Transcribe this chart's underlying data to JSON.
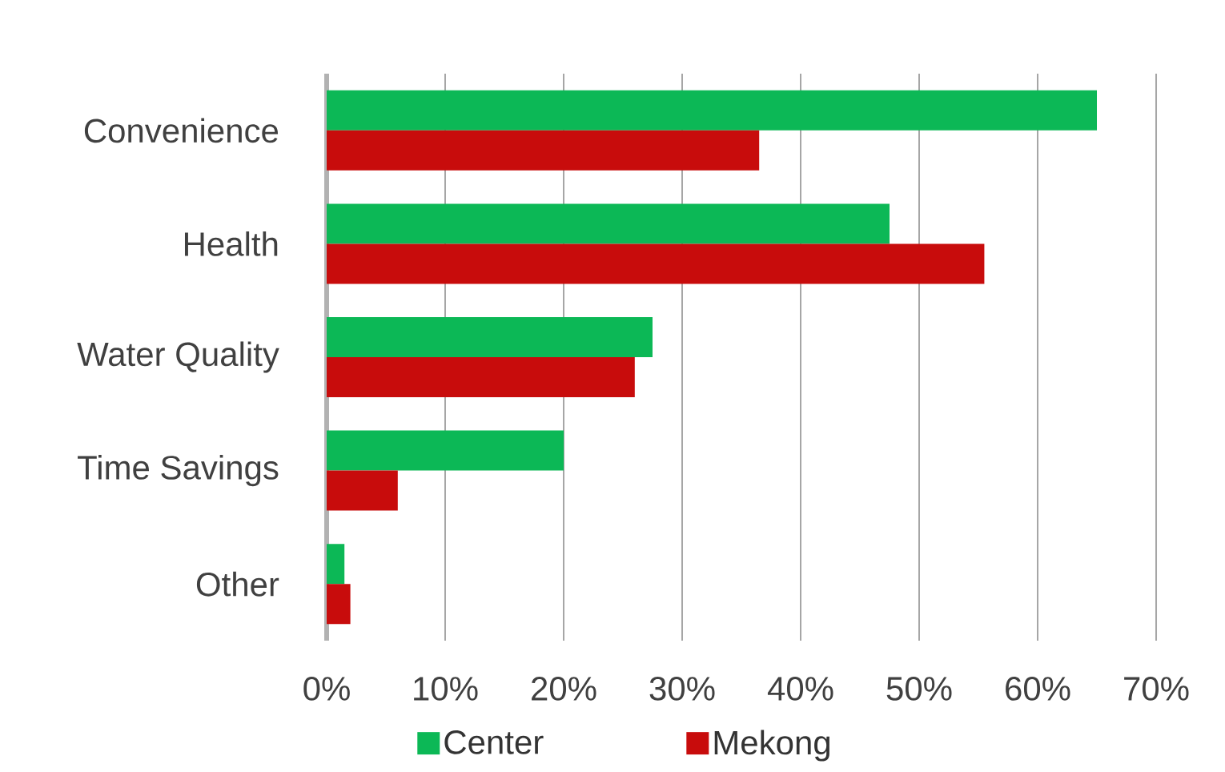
{
  "chart_data": {
    "type": "bar",
    "orientation": "horizontal",
    "categories": [
      "Convenience",
      "Health",
      "Water Quality",
      "Time Savings",
      "Other"
    ],
    "series": [
      {
        "name": "Center",
        "color": "#0cb856",
        "values": [
          65,
          47.5,
          27.5,
          20,
          1.5
        ]
      },
      {
        "name": "Mekong",
        "color": "#c80c0c",
        "values": [
          36.5,
          55.5,
          26,
          6,
          2
        ]
      }
    ],
    "xlim": [
      0,
      70
    ],
    "xticks": [
      {
        "value": 0,
        "label": "0%"
      },
      {
        "value": 10,
        "label": "10%"
      },
      {
        "value": 20,
        "label": "20%"
      },
      {
        "value": 30,
        "label": "30%"
      },
      {
        "value": 40,
        "label": "40%"
      },
      {
        "value": 50,
        "label": "50%"
      },
      {
        "value": 60,
        "label": "60%"
      },
      {
        "value": 70,
        "label": "70%"
      }
    ],
    "grid": "x",
    "legend": "bottom"
  }
}
